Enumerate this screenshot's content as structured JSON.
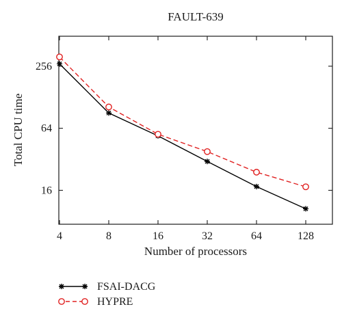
{
  "chart_data": {
    "type": "line",
    "title": "FAULT-639",
    "xlabel": "Number of processors",
    "ylabel": "Total CPU time",
    "x_scale": "log2",
    "y_scale": "log2",
    "x": [
      4,
      8,
      16,
      32,
      64,
      128
    ],
    "x_tick_labels": [
      "4",
      "8",
      "16",
      "32",
      "64",
      "128"
    ],
    "y_ticks": [
      16,
      64,
      256
    ],
    "y_tick_labels": [
      "16",
      "64",
      "256"
    ],
    "xlim": [
      4,
      128
    ],
    "ylim": [
      7.5,
      500
    ],
    "grid": false,
    "legend_position": "bottom-left, below plot",
    "series": [
      {
        "name": "FSAI-DACG",
        "values": [
          270,
          90,
          54,
          30.5,
          17.4,
          10.6
        ],
        "color": "#000000",
        "line_style": "solid",
        "marker": "asterisk"
      },
      {
        "name": "HYPRE",
        "values": [
          315,
          103,
          56,
          38,
          24,
          17.3
        ],
        "color": "#e02020",
        "line_style": "dashed",
        "marker": "open-circle"
      }
    ]
  }
}
